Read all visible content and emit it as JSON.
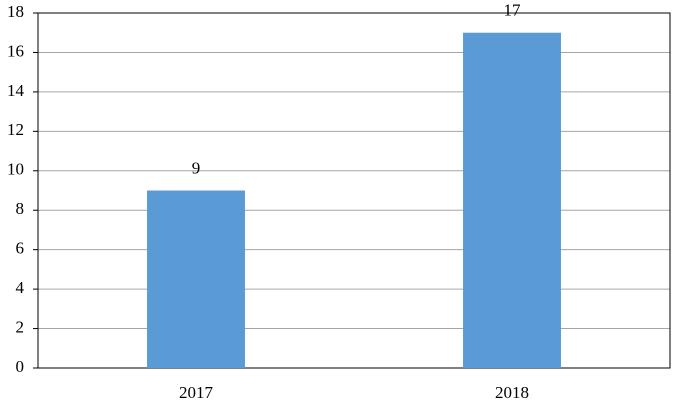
{
  "chart_data": {
    "type": "bar",
    "categories": [
      "2017",
      "2018"
    ],
    "values": [
      9,
      17
    ],
    "color": "#5b9bd5",
    "ylim": [
      0,
      18
    ],
    "yticks": [
      0,
      2,
      4,
      6,
      8,
      10,
      12,
      14,
      16,
      18
    ],
    "grid": true,
    "data_labels": true
  }
}
